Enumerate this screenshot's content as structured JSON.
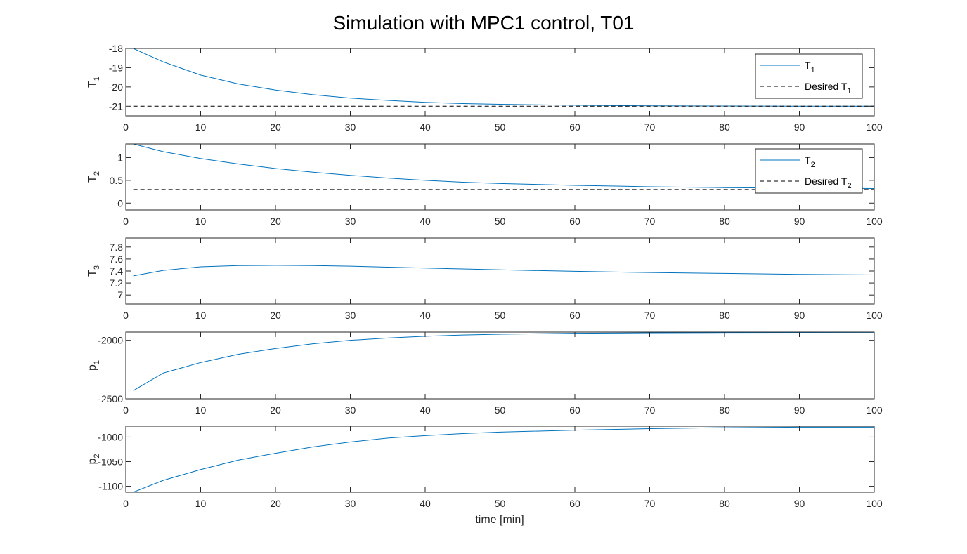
{
  "figure": {
    "title": "Simulation with MPC1 control, T01",
    "xlabel": "time [min]"
  },
  "colors": {
    "series": "#0072bd",
    "desired": "#000000",
    "axes": "#262626"
  },
  "chart_data": [
    {
      "type": "line",
      "id": "t1",
      "ylabel": "T",
      "ylabel_sub": "1",
      "xlim": [
        0,
        100
      ],
      "ylim": [
        -21.5,
        -18
      ],
      "xticks": [
        0,
        10,
        20,
        30,
        40,
        50,
        60,
        70,
        80,
        90,
        100
      ],
      "yticks": [
        -21,
        -20,
        -19,
        -18
      ],
      "x": [
        1,
        5,
        10,
        15,
        20,
        25,
        30,
        35,
        40,
        45,
        50,
        60,
        70,
        80,
        90,
        100
      ],
      "series": [
        {
          "name": "T",
          "name_sub": "1",
          "style": "solid",
          "values": [
            -18,
            -18.7,
            -19.38,
            -19.84,
            -20.16,
            -20.4,
            -20.58,
            -20.7,
            -20.8,
            -20.86,
            -20.9,
            -20.95,
            -20.98,
            -20.99,
            -21,
            -21
          ]
        },
        {
          "name": "Desired T",
          "name_sub": "1",
          "style": "dashed",
          "values": [
            -21,
            -21,
            -21,
            -21,
            -21,
            -21,
            -21,
            -21,
            -21,
            -21,
            -21,
            -21,
            -21,
            -21,
            -21,
            -21
          ]
        }
      ],
      "legend": "top-right"
    },
    {
      "type": "line",
      "id": "t2",
      "ylabel": "T",
      "ylabel_sub": "2",
      "xlim": [
        0,
        100
      ],
      "ylim": [
        -0.15,
        1.3
      ],
      "xticks": [
        0,
        10,
        20,
        30,
        40,
        50,
        60,
        70,
        80,
        90,
        100
      ],
      "yticks": [
        0,
        0.5,
        1
      ],
      "ytick_labels": [
        "0",
        "0.5",
        "1"
      ],
      "x": [
        1,
        5,
        10,
        15,
        20,
        25,
        30,
        35,
        40,
        45,
        50,
        60,
        70,
        80,
        90,
        100
      ],
      "series": [
        {
          "name": "T",
          "name_sub": "2",
          "style": "solid",
          "values": [
            1.3,
            1.13,
            0.98,
            0.86,
            0.76,
            0.68,
            0.61,
            0.55,
            0.5,
            0.46,
            0.43,
            0.39,
            0.36,
            0.34,
            0.33,
            0.32
          ]
        },
        {
          "name": "Desired T",
          "name_sub": "2",
          "style": "dashed",
          "values": [
            0.3,
            0.3,
            0.3,
            0.3,
            0.3,
            0.3,
            0.3,
            0.3,
            0.3,
            0.3,
            0.3,
            0.3,
            0.3,
            0.3,
            0.3,
            0.3
          ]
        }
      ],
      "legend": "top-right"
    },
    {
      "type": "line",
      "id": "t3",
      "ylabel": "T",
      "ylabel_sub": "3",
      "xlim": [
        0,
        100
      ],
      "ylim": [
        6.85,
        7.95
      ],
      "xticks": [
        0,
        10,
        20,
        30,
        40,
        50,
        60,
        70,
        80,
        90,
        100
      ],
      "yticks": [
        7,
        7.2,
        7.4,
        7.6,
        7.8
      ],
      "x": [
        1,
        5,
        10,
        15,
        20,
        25,
        30,
        35,
        40,
        45,
        50,
        60,
        70,
        80,
        90,
        100
      ],
      "series": [
        {
          "style": "solid",
          "values": [
            7.32,
            7.41,
            7.47,
            7.49,
            7.495,
            7.49,
            7.48,
            7.465,
            7.45,
            7.435,
            7.42,
            7.395,
            7.375,
            7.36,
            7.345,
            7.335
          ]
        }
      ]
    },
    {
      "type": "line",
      "id": "p1",
      "ylabel": "p",
      "ylabel_sub": "1",
      "xlim": [
        0,
        100
      ],
      "ylim": [
        -2500,
        -1930
      ],
      "xticks": [
        0,
        10,
        20,
        30,
        40,
        50,
        60,
        70,
        80,
        90,
        100
      ],
      "yticks": [
        -2500,
        -2000
      ],
      "x": [
        1,
        5,
        10,
        15,
        20,
        25,
        30,
        35,
        40,
        45,
        50,
        60,
        70,
        80,
        90,
        100
      ],
      "series": [
        {
          "style": "solid",
          "values": [
            -2430,
            -2280,
            -2190,
            -2120,
            -2070,
            -2030,
            -2000,
            -1980,
            -1965,
            -1955,
            -1948,
            -1940,
            -1936,
            -1934,
            -1933,
            -1932
          ]
        }
      ]
    },
    {
      "type": "line",
      "id": "p2",
      "ylabel": "p",
      "ylabel_sub": "2",
      "xlim": [
        0,
        100
      ],
      "ylim": [
        -1112,
        -978
      ],
      "xticks": [
        0,
        10,
        20,
        30,
        40,
        50,
        60,
        70,
        80,
        90,
        100
      ],
      "yticks": [
        -1100,
        -1050,
        -1000
      ],
      "x": [
        1,
        5,
        10,
        15,
        20,
        25,
        30,
        35,
        40,
        45,
        50,
        60,
        70,
        80,
        90,
        100
      ],
      "series": [
        {
          "style": "solid",
          "values": [
            -1112,
            -1088,
            -1066,
            -1047,
            -1033,
            -1020,
            -1010,
            -1002,
            -997,
            -993,
            -990,
            -986,
            -983,
            -981,
            -980,
            -980
          ]
        }
      ],
      "show_xlabel": true
    }
  ]
}
